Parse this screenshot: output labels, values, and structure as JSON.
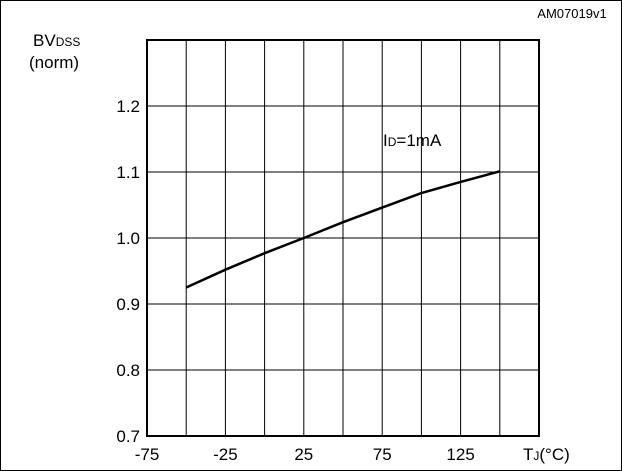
{
  "figure_id": "AM07019v1",
  "chart_data": {
    "type": "line",
    "title": "",
    "ylabel_main": "BV",
    "ylabel_sub": "DSS",
    "ylabel_unit": "(norm)",
    "xlabel_main": "T",
    "xlabel_sub": "J",
    "xlabel_unit": "(°C)",
    "annotation_main": "I",
    "annotation_sub": "D",
    "annotation_value": "=1mA",
    "xlim": [
      -75,
      175
    ],
    "ylim": [
      0.7,
      1.3
    ],
    "x_ticks": [
      -75,
      -25,
      25,
      75,
      125
    ],
    "y_ticks": [
      0.7,
      0.8,
      0.9,
      1.0,
      1.1,
      1.2
    ],
    "y_tick_labels": [
      "0.7",
      "0.8",
      "0.9",
      "1.0",
      "1.1",
      "1.2"
    ],
    "x_grid": [
      -75,
      -50,
      -25,
      0,
      25,
      50,
      75,
      100,
      125,
      150,
      175
    ],
    "y_grid": [
      0.7,
      0.8,
      0.9,
      1.0,
      1.1,
      1.2,
      1.3
    ],
    "grid": true,
    "series": [
      {
        "x": [
          -50,
          -25,
          0,
          25,
          50,
          75,
          100,
          125,
          150
        ],
        "y": [
          0.925,
          0.952,
          0.977,
          1.0,
          1.024,
          1.046,
          1.068,
          1.085,
          1.101
        ]
      }
    ]
  }
}
